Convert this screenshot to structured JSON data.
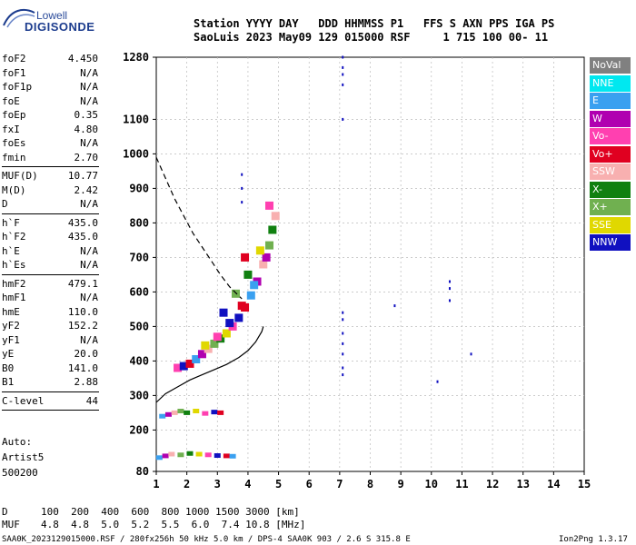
{
  "logo": {
    "top_text": "Lowell",
    "brand_text": "DIGISONDE"
  },
  "header": {
    "line1": "Station YYYY DAY   DDD HHMMSS P1   FFS S AXN PPS IGA PS",
    "line2": "SaoLuis 2023 May09 129 015000 RSF     1 715 100 00- 11"
  },
  "params_group1": [
    {
      "label": "foF2",
      "value": "4.450"
    },
    {
      "label": "foF1",
      "value": "N/A"
    },
    {
      "label": "foF1p",
      "value": "N/A"
    },
    {
      "label": "foE",
      "value": "N/A"
    },
    {
      "label": "foEp",
      "value": "0.35"
    },
    {
      "label": "fxI",
      "value": "4.80"
    },
    {
      "label": "foEs",
      "value": "N/A"
    },
    {
      "label": "fmin",
      "value": "2.70"
    }
  ],
  "params_group2": [
    {
      "label": "MUF(D)",
      "value": "10.77"
    },
    {
      "label": "M(D)",
      "value": "2.42"
    },
    {
      "label": "D",
      "value": "N/A"
    }
  ],
  "params_group3": [
    {
      "label": "h`F",
      "value": "435.0"
    },
    {
      "label": "h`F2",
      "value": "435.0"
    },
    {
      "label": "h`E",
      "value": "N/A"
    },
    {
      "label": "h`Es",
      "value": "N/A"
    }
  ],
  "params_group4": [
    {
      "label": "hmF2",
      "value": "479.1"
    },
    {
      "label": "hmF1",
      "value": "N/A"
    },
    {
      "label": "hmE",
      "value": "110.0"
    },
    {
      "label": "yF2",
      "value": "152.2"
    },
    {
      "label": "yF1",
      "value": "N/A"
    },
    {
      "label": "yE",
      "value": "20.0"
    },
    {
      "label": "B0",
      "value": "141.0"
    },
    {
      "label": "B1",
      "value": "2.88"
    }
  ],
  "c_level": {
    "label": "C-level",
    "value": "44"
  },
  "autoscaling": {
    "line1": "Auto:",
    "line2": "Artist5",
    "line3": "500200"
  },
  "legend": [
    {
      "label": "NoVal",
      "color": "#808080",
      "text_color": "#ffffff"
    },
    {
      "label": "NNE",
      "color": "#00e8f0",
      "text_color": "#ffffff"
    },
    {
      "label": "E",
      "color": "#3aa0f0",
      "text_color": "#ffffff"
    },
    {
      "label": "W",
      "color": "#b000b0",
      "text_color": "#ffffff"
    },
    {
      "label": "Vo-",
      "color": "#ff40b0",
      "text_color": "#ffffff"
    },
    {
      "label": "Vo+",
      "color": "#e00020",
      "text_color": "#ffffff"
    },
    {
      "label": "SSW",
      "color": "#f8b0b0",
      "text_color": "#ffffff"
    },
    {
      "label": "X-",
      "color": "#108010",
      "text_color": "#ffffff"
    },
    {
      "label": "X+",
      "color": "#70b050",
      "text_color": "#ffffff"
    },
    {
      "label": "SSE",
      "color": "#e0d800",
      "text_color": "#ffffff"
    },
    {
      "label": "NNW",
      "color": "#1010c0",
      "text_color": "#ffffff"
    }
  ],
  "footer": {
    "d_label": "D",
    "d_values": "100  200  400  600  800 1000 1500 3000 [km]",
    "muf_label": "MUF",
    "muf_values": "4.8  4.8  5.0  5.2  5.5  6.0  7.4 10.8 [MHz]",
    "file_info": "SAA0K_2023129015000.RSF / 280fx256h 50 kHz 5.0 km / DPS-4 SAA0K 903 / 2.6 S 315.8 E",
    "version": "Ion2Png 1.3.17"
  },
  "chart_data": {
    "type": "scatter",
    "x_ticks": [
      "1",
      "2",
      "3",
      "4",
      "5",
      "6",
      "7",
      "8",
      "9",
      "10",
      "11",
      "12",
      "13",
      "14",
      "15"
    ],
    "y_ticks": [
      "80",
      "200",
      "300",
      "400",
      "500",
      "600",
      "700",
      "800",
      "900",
      "1000",
      "1100",
      "1280"
    ],
    "xlim": [
      1,
      15
    ],
    "ylim": [
      80,
      1280
    ],
    "grid": true,
    "series": [
      {
        "values": [
          [
            1.7,
            380
          ],
          [
            1.9,
            385
          ],
          [
            2.1,
            392
          ],
          [
            2.3,
            405
          ],
          [
            2.5,
            420
          ],
          [
            2.7,
            435
          ],
          [
            2.9,
            450
          ],
          [
            3.1,
            465
          ],
          [
            3.3,
            480
          ],
          [
            3.5,
            500
          ],
          [
            3.7,
            525
          ],
          [
            3.9,
            555
          ],
          [
            4.1,
            590
          ],
          [
            4.3,
            630
          ],
          [
            4.5,
            680
          ],
          [
            4.7,
            735
          ],
          [
            4.8,
            780
          ],
          [
            2.6,
            445
          ],
          [
            3.0,
            470
          ],
          [
            3.4,
            510
          ],
          [
            3.8,
            560
          ],
          [
            4.2,
            620
          ],
          [
            4.6,
            700
          ],
          [
            4.9,
            820
          ],
          [
            3.6,
            595
          ],
          [
            4.0,
            650
          ],
          [
            4.4,
            720
          ],
          [
            4.7,
            850
          ],
          [
            3.2,
            540
          ],
          [
            3.9,
            700
          ]
        ]
      },
      {
        "values": [
          [
            1.2,
            240
          ],
          [
            1.4,
            245
          ],
          [
            1.6,
            250
          ],
          [
            1.8,
            255
          ],
          [
            2.0,
            250
          ],
          [
            2.3,
            255
          ],
          [
            2.6,
            248
          ],
          [
            2.9,
            252
          ],
          [
            3.1,
            250
          ],
          [
            1.1,
            120
          ],
          [
            1.3,
            125
          ],
          [
            1.5,
            130
          ],
          [
            1.8,
            128
          ],
          [
            2.1,
            132
          ],
          [
            2.4,
            130
          ],
          [
            2.7,
            128
          ],
          [
            3.0,
            126
          ],
          [
            3.3,
            125
          ],
          [
            3.5,
            124
          ]
        ]
      },
      {
        "values": [
          [
            7.1,
            1280
          ],
          [
            7.1,
            1250
          ],
          [
            7.1,
            1230
          ],
          [
            7.1,
            1200
          ],
          [
            7.1,
            1100
          ],
          [
            7.1,
            540
          ],
          [
            7.1,
            520
          ],
          [
            7.1,
            480
          ],
          [
            7.1,
            450
          ],
          [
            7.1,
            420
          ],
          [
            7.1,
            380
          ],
          [
            7.1,
            360
          ],
          [
            3.8,
            940
          ],
          [
            3.8,
            900
          ],
          [
            3.8,
            860
          ],
          [
            10.6,
            630
          ],
          [
            10.6,
            610
          ],
          [
            10.6,
            575
          ],
          [
            11.3,
            420
          ],
          [
            10.2,
            340
          ],
          [
            8.8,
            560
          ]
        ]
      },
      {
        "type": "line",
        "values": [
          [
            1.0,
            280
          ],
          [
            1.3,
            305
          ],
          [
            1.7,
            325
          ],
          [
            2.1,
            345
          ],
          [
            2.5,
            360
          ],
          [
            2.9,
            375
          ],
          [
            3.3,
            390
          ],
          [
            3.7,
            410
          ],
          [
            4.0,
            430
          ],
          [
            4.25,
            455
          ],
          [
            4.45,
            485
          ],
          [
            4.5,
            500
          ]
        ]
      },
      {
        "type": "dashed-line",
        "values": [
          [
            1.0,
            990
          ],
          [
            1.3,
            930
          ],
          [
            1.6,
            870
          ],
          [
            1.9,
            820
          ],
          [
            2.2,
            770
          ],
          [
            2.5,
            730
          ],
          [
            2.8,
            690
          ],
          [
            3.1,
            650
          ],
          [
            3.4,
            615
          ],
          [
            3.8,
            580
          ]
        ]
      }
    ]
  }
}
